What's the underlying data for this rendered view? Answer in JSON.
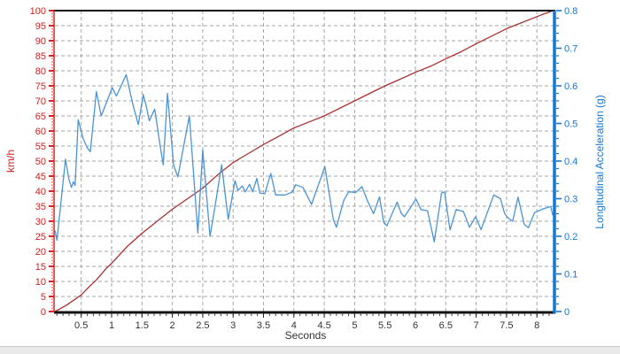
{
  "chart_data": {
    "type": "line",
    "title": "",
    "xlabel": "Seconds",
    "grid": true,
    "legend": "none",
    "x_range": [
      0.07,
      8.27
    ],
    "x_axis": {
      "tick_labels": [
        "0.5",
        "1",
        "1.5",
        "2",
        "2.5",
        "3",
        "3.5",
        "4",
        "4.5",
        "5",
        "5.5",
        "6",
        "6.5",
        "7",
        "7.5",
        "8"
      ],
      "major_step": 0.5,
      "minor_step": 0.1,
      "color": "#222222"
    },
    "left_axis": {
      "label": "km/h",
      "range": [
        0,
        100
      ],
      "tick_labels": [
        "0",
        "5",
        "10",
        "15",
        "20",
        "25",
        "30",
        "35",
        "40",
        "45",
        "50",
        "55",
        "60",
        "65",
        "70",
        "75",
        "80",
        "85",
        "90",
        "95",
        "100"
      ],
      "major_step": 5,
      "minor_step": 1,
      "axis_color": "#dd2222",
      "label_color": "#cc2222",
      "minor_tick_color": "#f29090"
    },
    "right_axis": {
      "label": "Longitudinal Acceleration (g)",
      "range": [
        0,
        0.8
      ],
      "tick_labels": [
        "0",
        "0.1",
        "0.2",
        "0.3",
        "0.4",
        "0.5",
        "0.6",
        "0.7",
        "0.8"
      ],
      "major_step": 0.1,
      "minor_step": 0.02,
      "axis_color": "#1577d1",
      "label_color": "#1577d1"
    },
    "grid_color": "#a6a6a6",
    "frame_color": "#111111",
    "series": [
      {
        "name": "speed-kmh",
        "axis": "left",
        "color": "#a83232",
        "points": [
          [
            0.07,
            0
          ],
          [
            0.25,
            2
          ],
          [
            0.5,
            5.5
          ],
          [
            0.62,
            8
          ],
          [
            0.75,
            10.5
          ],
          [
            0.91,
            14.3
          ],
          [
            1.0,
            16
          ],
          [
            1.25,
            21.5
          ],
          [
            1.5,
            26
          ],
          [
            1.75,
            30
          ],
          [
            2.0,
            34
          ],
          [
            2.25,
            37.5
          ],
          [
            2.5,
            41
          ],
          [
            2.75,
            45.5
          ],
          [
            3.0,
            49.5
          ],
          [
            3.25,
            52.5
          ],
          [
            3.5,
            55.5
          ],
          [
            3.75,
            58.2
          ],
          [
            4.0,
            61
          ],
          [
            4.25,
            63
          ],
          [
            4.5,
            65
          ],
          [
            4.75,
            67.5
          ],
          [
            5.0,
            70
          ],
          [
            5.25,
            72.5
          ],
          [
            5.5,
            75
          ],
          [
            5.75,
            77.2
          ],
          [
            6.0,
            79.5
          ],
          [
            6.25,
            81.5
          ],
          [
            6.5,
            84
          ],
          [
            6.75,
            86.3
          ],
          [
            7.0,
            89
          ],
          [
            7.25,
            91.5
          ],
          [
            7.5,
            94
          ],
          [
            7.75,
            96
          ],
          [
            8.0,
            98
          ],
          [
            8.1,
            98.8
          ],
          [
            8.27,
            100
          ]
        ]
      },
      {
        "name": "longitudinal-acceleration-g",
        "axis": "right",
        "color": "#4a94d4",
        "points": [
          [
            0.07,
            0.215
          ],
          [
            0.1,
            0.19
          ],
          [
            0.18,
            0.31
          ],
          [
            0.24,
            0.405
          ],
          [
            0.3,
            0.35
          ],
          [
            0.34,
            0.33
          ],
          [
            0.37,
            0.345
          ],
          [
            0.4,
            0.335
          ],
          [
            0.45,
            0.51
          ],
          [
            0.53,
            0.46
          ],
          [
            0.6,
            0.435
          ],
          [
            0.65,
            0.425
          ],
          [
            0.75,
            0.585
          ],
          [
            0.83,
            0.52
          ],
          [
            1.01,
            0.595
          ],
          [
            1.08,
            0.573
          ],
          [
            1.24,
            0.63
          ],
          [
            1.35,
            0.55
          ],
          [
            1.44,
            0.497
          ],
          [
            1.52,
            0.577
          ],
          [
            1.57,
            0.546
          ],
          [
            1.62,
            0.507
          ],
          [
            1.71,
            0.538
          ],
          [
            1.79,
            0.45
          ],
          [
            1.85,
            0.39
          ],
          [
            1.92,
            0.58
          ],
          [
            2.02,
            0.389
          ],
          [
            2.09,
            0.358
          ],
          [
            2.28,
            0.52
          ],
          [
            2.42,
            0.209
          ],
          [
            2.5,
            0.43
          ],
          [
            2.62,
            0.2
          ],
          [
            2.71,
            0.287
          ],
          [
            2.81,
            0.39
          ],
          [
            2.92,
            0.245
          ],
          [
            3.03,
            0.348
          ],
          [
            3.08,
            0.322
          ],
          [
            3.15,
            0.334
          ],
          [
            3.2,
            0.318
          ],
          [
            3.27,
            0.338
          ],
          [
            3.32,
            0.318
          ],
          [
            3.39,
            0.354
          ],
          [
            3.44,
            0.315
          ],
          [
            3.52,
            0.313
          ],
          [
            3.62,
            0.367
          ],
          [
            3.7,
            0.31
          ],
          [
            3.85,
            0.31
          ],
          [
            3.97,
            0.317
          ],
          [
            4.03,
            0.337
          ],
          [
            4.15,
            0.33
          ],
          [
            4.29,
            0.285
          ],
          [
            4.51,
            0.385
          ],
          [
            4.65,
            0.244
          ],
          [
            4.7,
            0.224
          ],
          [
            4.82,
            0.295
          ],
          [
            4.9,
            0.318
          ],
          [
            5.02,
            0.317
          ],
          [
            5.12,
            0.332
          ],
          [
            5.21,
            0.295
          ],
          [
            5.31,
            0.26
          ],
          [
            5.41,
            0.305
          ],
          [
            5.48,
            0.236
          ],
          [
            5.53,
            0.228
          ],
          [
            5.7,
            0.291
          ],
          [
            5.77,
            0.26
          ],
          [
            5.82,
            0.252
          ],
          [
            6.01,
            0.299
          ],
          [
            6.09,
            0.271
          ],
          [
            6.2,
            0.268
          ],
          [
            6.31,
            0.185
          ],
          [
            6.43,
            0.315
          ],
          [
            6.48,
            0.318
          ],
          [
            6.57,
            0.217
          ],
          [
            6.67,
            0.271
          ],
          [
            6.79,
            0.266
          ],
          [
            6.89,
            0.224
          ],
          [
            6.99,
            0.252
          ],
          [
            7.08,
            0.218
          ],
          [
            7.29,
            0.31
          ],
          [
            7.4,
            0.3
          ],
          [
            7.47,
            0.26
          ],
          [
            7.53,
            0.248
          ],
          [
            7.6,
            0.24
          ],
          [
            7.69,
            0.304
          ],
          [
            7.79,
            0.232
          ],
          [
            7.86,
            0.223
          ],
          [
            7.96,
            0.263
          ],
          [
            8.1,
            0.273
          ],
          [
            8.23,
            0.279
          ],
          [
            8.26,
            0.256
          ]
        ]
      }
    ]
  }
}
